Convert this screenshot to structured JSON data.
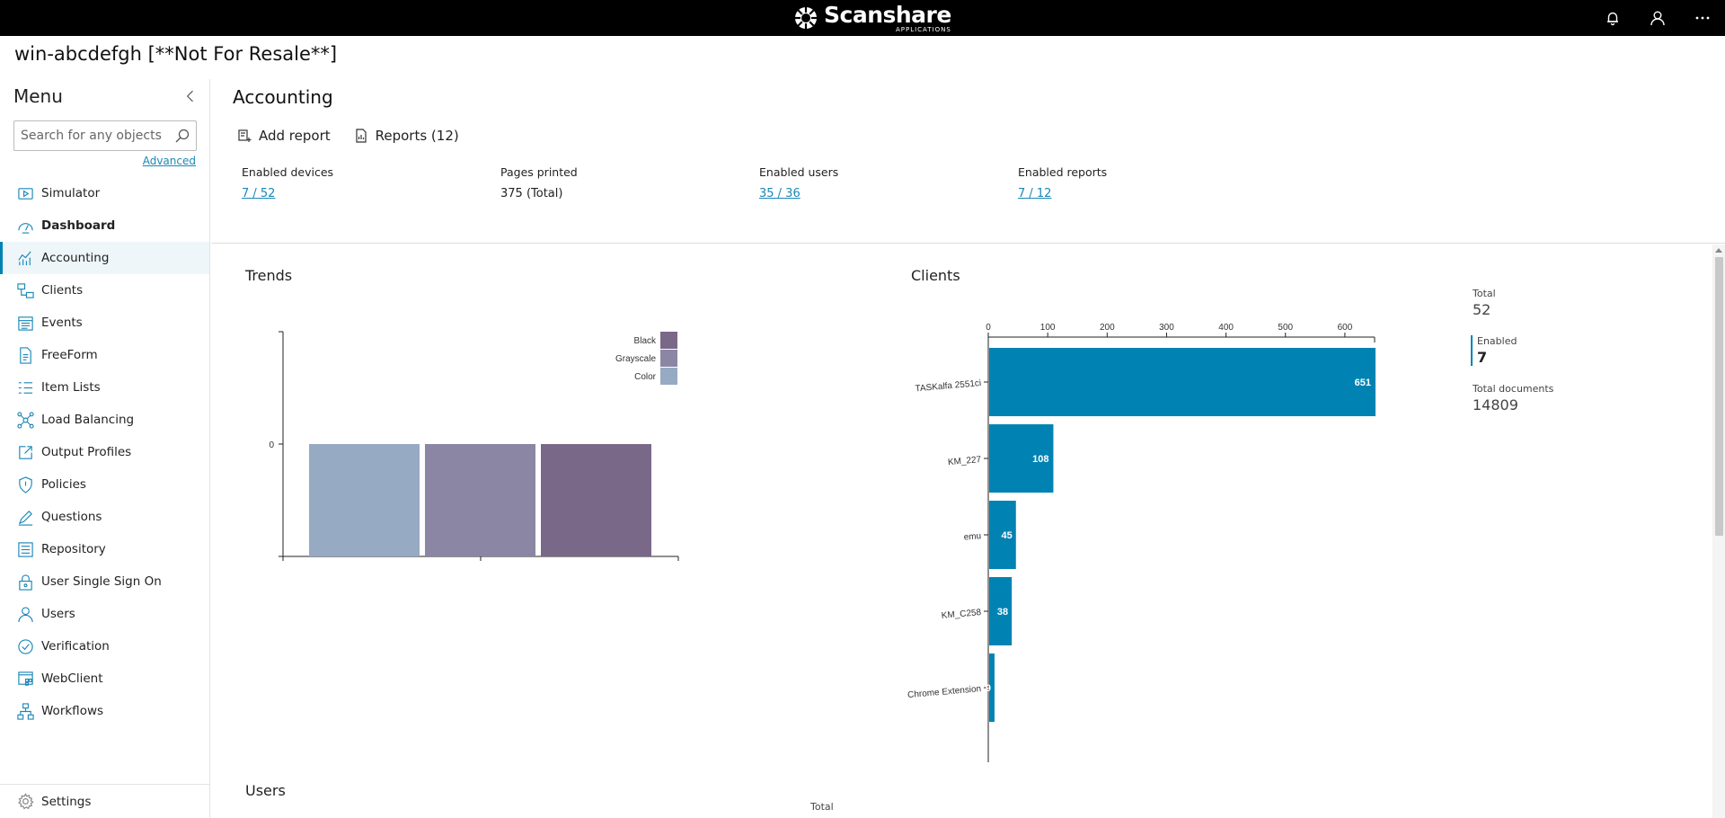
{
  "topbar": {
    "logo_name": "Scanshare",
    "logo_sub": "APPLICATIONS"
  },
  "host_title": "win-abcdefgh [**Not For Resale**]",
  "sidebar": {
    "title": "Menu",
    "search_placeholder": "Search for any objects ...",
    "advanced": "Advanced",
    "items": [
      {
        "label": "Simulator",
        "icon": "simulator-icon"
      },
      {
        "label": "Dashboard",
        "icon": "dashboard-icon"
      },
      {
        "label": "Accounting",
        "icon": "accounting-icon",
        "active": true
      },
      {
        "label": "Clients",
        "icon": "clients-icon"
      },
      {
        "label": "Events",
        "icon": "events-icon"
      },
      {
        "label": "FreeForm",
        "icon": "freeform-icon"
      },
      {
        "label": "Item Lists",
        "icon": "item-lists-icon"
      },
      {
        "label": "Load Balancing",
        "icon": "load-balancing-icon"
      },
      {
        "label": "Output Profiles",
        "icon": "output-profiles-icon"
      },
      {
        "label": "Policies",
        "icon": "policies-icon"
      },
      {
        "label": "Questions",
        "icon": "questions-icon"
      },
      {
        "label": "Repository",
        "icon": "repository-icon"
      },
      {
        "label": "User Single Sign On",
        "icon": "sso-icon"
      },
      {
        "label": "Users",
        "icon": "users-icon"
      },
      {
        "label": "Verification",
        "icon": "verification-icon"
      },
      {
        "label": "WebClient",
        "icon": "webclient-icon"
      },
      {
        "label": "Workflows",
        "icon": "workflows-icon"
      }
    ],
    "settings": "Settings"
  },
  "main": {
    "title": "Accounting",
    "add_report": "Add report",
    "reports": "Reports (12)",
    "stats": [
      {
        "label": "Enabled devices",
        "value": "7 / 52",
        "link": true
      },
      {
        "label": "Pages printed",
        "value": "375 (Total)",
        "link": false
      },
      {
        "label": "Enabled users",
        "value": "35 / 36",
        "link": true
      },
      {
        "label": "Enabled reports",
        "value": "7 / 12",
        "link": true
      }
    ],
    "trends_title": "Trends",
    "clients_title": "Clients",
    "users_title": "Users",
    "users_total_label": "Total",
    "client_stats": {
      "total_label": "Total",
      "total_value": "52",
      "enabled_label": "Enabled",
      "enabled_value": "7",
      "docs_label": "Total documents",
      "docs_value": "14809"
    }
  },
  "chart_data": [
    {
      "type": "bar",
      "title": "Trends",
      "y_tick_labels": [
        "0"
      ],
      "legend": [
        "Black",
        "Grayscale",
        "Color"
      ],
      "legend_colors": [
        "#7a6888",
        "#8b86a3",
        "#97aac4"
      ],
      "legend_placement": "top-right",
      "series": [
        {
          "name": "Color",
          "values": [
            0
          ]
        },
        {
          "name": "Grayscale",
          "values": [
            0
          ]
        },
        {
          "name": "Black",
          "values": [
            0
          ]
        }
      ]
    },
    {
      "type": "bar",
      "orientation": "horizontal",
      "title": "Clients",
      "categories": [
        "TASKalfa 2551ci",
        "KM_227",
        "emu",
        "KM_C258",
        "Chrome Extension"
      ],
      "values": [
        651,
        108,
        45,
        38,
        9
      ],
      "xlim": [
        0,
        650
      ],
      "x_ticks": [
        0,
        100,
        200,
        300,
        400,
        500,
        600
      ],
      "color": "#0083b3"
    }
  ]
}
